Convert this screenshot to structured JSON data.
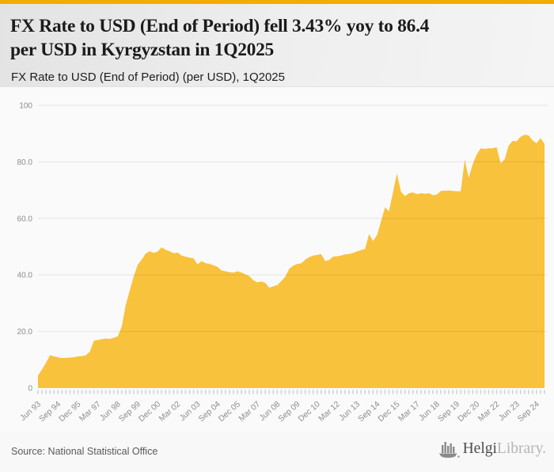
{
  "page": {
    "background": "#f8f8f8",
    "accent_bar_color": "#F5AB05"
  },
  "header": {
    "title": "FX Rate to USD (End of Period) fell 3.43% yoy to 86.4 per USD in Kyrgyzstan in 1Q2025",
    "title_lines": [
      "FX Rate to USD (End of Period) fell 3.43% yoy to 86.4",
      "per USD in Kyrgyzstan in 1Q2025"
    ],
    "subtitle": "FX Rate to USD (End of Period) (per USD), 1Q2025"
  },
  "footer": {
    "source": "Source: National Statistical Office",
    "logo": {
      "icon": "bar-chart-boat-icon",
      "text_primary": "Helgi",
      "text_secondary": "Library."
    }
  },
  "chart_data": {
    "type": "area",
    "title": "FX Rate to USD (End of Period) (per USD), 1Q2025",
    "series_name": "FX Rate to USD (End of Period), per USD",
    "country": "Kyrgyzstan",
    "frequency": "quarterly",
    "period_start": "1993-Q2",
    "period_end": "2025-Q1",
    "latest_value": 86.4,
    "yoy_change_pct": -3.43,
    "ylim": [
      0,
      100
    ],
    "grid": true,
    "legend": false,
    "fill_color": "#F9C23C",
    "plot_background": "#fafafa",
    "gridline_color": "rgba(0,0,0,0.085)",
    "tick_color": "#ccd1e3",
    "label_color": "#8c8c8c",
    "yticks": [
      {
        "value": 100,
        "label": "100"
      },
      {
        "value": 80,
        "label": "80.0"
      },
      {
        "value": 60,
        "label": "60.0"
      },
      {
        "value": 40,
        "label": "40.0"
      },
      {
        "value": 20,
        "label": "20.0"
      },
      {
        "value": 0,
        "label": "0"
      }
    ],
    "xtick_interval_quarters": 5,
    "xtick_labels": [
      "Jun 93",
      "Sep 94",
      "Dec 95",
      "Mar 97",
      "Jun 98",
      "Sep 99",
      "Dec 00",
      "Mar 02",
      "Jun 03",
      "Sep 04",
      "Dec 05",
      "Mar 07",
      "Jun 08",
      "Sep 09",
      "Dec 10",
      "Mar 12",
      "Jun 13",
      "Sep 14",
      "Dec 15",
      "Mar 17",
      "Jun 18",
      "Sep 19",
      "Dec 20",
      "Mar 22",
      "Jun 23",
      "Sep 24"
    ],
    "values": [
      4.5,
      6.6,
      8.9,
      11.6,
      11.2,
      10.9,
      10.6,
      10.7,
      10.8,
      10.9,
      11.2,
      11.3,
      11.6,
      12.9,
      16.7,
      17.0,
      17.3,
      17.5,
      17.4,
      17.8,
      18.3,
      21.7,
      29.4,
      34.5,
      39.5,
      43.6,
      45.4,
      47.6,
      48.4,
      47.8,
      48.3,
      49.8,
      48.9,
      48.4,
      47.7,
      47.9,
      46.9,
      46.5,
      46.1,
      45.9,
      43.7,
      44.9,
      44.2,
      43.9,
      43.4,
      42.9,
      41.6,
      41.3,
      41.0,
      40.8,
      41.3,
      40.9,
      40.2,
      39.6,
      38.1,
      37.4,
      37.7,
      37.2,
      35.5,
      36.0,
      36.4,
      37.8,
      39.4,
      42.2,
      43.3,
      43.9,
      44.1,
      45.4,
      46.3,
      46.9,
      47.1,
      47.4,
      44.9,
      45.3,
      46.5,
      46.6,
      46.9,
      47.3,
      47.4,
      47.8,
      48.4,
      48.8,
      49.2,
      54.5,
      52.0,
      54.1,
      58.9,
      63.9,
      62.5,
      69.2,
      75.9,
      69.5,
      67.9,
      68.9,
      69.2,
      68.6,
      68.9,
      68.7,
      68.9,
      68.2,
      68.4,
      69.7,
      69.8,
      69.9,
      69.7,
      69.6,
      69.6,
      80.8,
      74.3,
      79.2,
      82.6,
      84.8,
      84.6,
      84.8,
      84.8,
      85.2,
      79.5,
      80.9,
      85.7,
      87.4,
      87.3,
      88.9,
      89.6,
      89.4,
      87.6,
      86.6,
      88.4,
      86.4
    ]
  }
}
